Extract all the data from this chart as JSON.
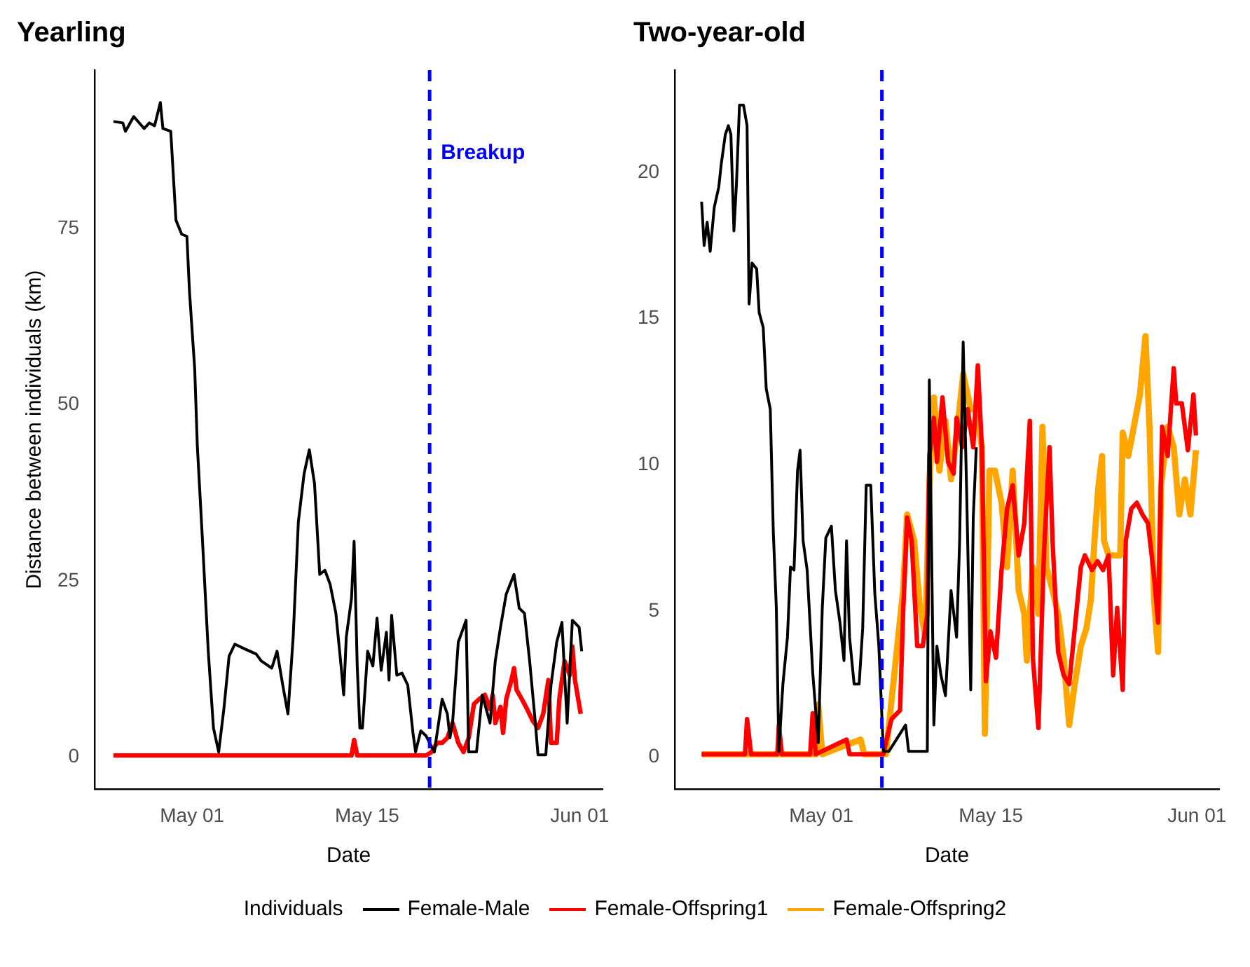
{
  "chart_data": [
    {
      "type": "line",
      "title": "Yearling",
      "xlabel": "Date",
      "ylabel": "Distance between individuals (km)",
      "xlim": [
        "--04-23T05:00",
        "--06-02T20:00"
      ],
      "ylim": [
        -4.6,
        97.5
      ],
      "xticks": [
        {
          "value": "--05-01",
          "label": "May 01"
        },
        {
          "value": "--05-15",
          "label": "May 15"
        },
        {
          "value": "--06-01",
          "label": "Jun 01"
        }
      ],
      "yticks": [
        0,
        25,
        50,
        75
      ],
      "grid": false,
      "ref_lines": [
        {
          "axis": "x",
          "value": "--05-20",
          "label": "Breakup",
          "color": "#0000ff",
          "line_style": "dashed"
        }
      ],
      "series": [
        {
          "color": "#000000",
          "x": [
            "--04-24T17:00",
            "--04-25T11:00",
            "--04-25T16:00",
            "--04-26T08:00",
            "--04-27T04:00",
            "--04-27T14:00",
            "--04-28T00:00",
            "--04-28T11:00",
            "--04-28T16:00",
            "--04-29T07:00",
            "--04-29T17:00",
            "--04-30T04:00",
            "--04-30T14:00",
            "--04-30T19:00",
            "--05-01T05:00",
            "--05-01T10:00",
            "--05-01T20:00",
            "--05-02T07:00",
            "--05-02T17:00",
            "--05-03T03:00",
            "--05-03T13:00",
            "--05-03T23:00",
            "--05-04T10:00",
            "--05-05T06:00",
            "--05-06T03:00",
            "--05-06T13:00",
            "--05-07T09:00",
            "--05-07T19:00",
            "--05-08T06:00",
            "--05-08T16:00",
            "--05-09T02:00",
            "--05-09T12:00",
            "--05-09T23:00",
            "--05-10T09:00",
            "--05-10T19:00",
            "--05-11T05:00",
            "--05-11T15:00",
            "--05-12T01:00",
            "--05-12T12:00",
            "--05-12T22:00",
            "--05-13T03:00",
            "--05-13T08:00",
            "--05-13T18:00",
            "--05-13T23:00",
            "--05-14T05:00",
            "--05-14T10:00",
            "--05-14T15:00",
            "--05-15T01:00",
            "--05-15T11:00",
            "--05-15T19:00",
            "--05-16T03:00",
            "--05-16T13:00",
            "--05-16T18:00",
            "--05-16T23:00",
            "--05-17T09:00",
            "--05-17T19:00",
            "--05-18T06:00",
            "--05-18T16:00",
            "--05-18T21:00",
            "--05-19T07:00",
            "--05-19T17:00",
            "--05-20T09:00",
            "--05-21T00:00",
            "--05-21T10:00",
            "--05-21T15:00",
            "--05-21T20:00",
            "--05-22T07:00",
            "--05-22T22:00",
            "--05-23T03:00",
            "--05-23T18:00",
            "--05-24T05:00",
            "--05-24T20:00",
            "--05-25T06:00",
            "--05-25T16:00",
            "--05-26T03:00",
            "--05-26T18:00",
            "--05-27T04:00",
            "--05-27T14:00",
            "--05-28T00:00",
            "--05-28T11:00",
            "--05-28T16:00",
            "--05-29T07:00",
            "--05-29T17:00",
            "--05-30T04:00",
            "--05-30T14:00",
            "--05-31T00:00",
            "--05-31T10:00",
            "--05-31T23:00",
            "--06-01T04:00"
          ],
          "values": [
            90.2,
            90,
            88.8,
            90.9,
            89.2,
            90,
            89.6,
            92.9,
            89.2,
            88.8,
            76.2,
            74.2,
            73.9,
            66,
            55.1,
            44.2,
            30.6,
            15,
            4.1,
            0.7,
            6.8,
            14.3,
            16,
            15.3,
            14.6,
            13.6,
            12.6,
            15,
            10.2,
            6.1,
            17,
            33.4,
            40.2,
            43.6,
            38.8,
            25.9,
            26.5,
            24.5,
            20.4,
            12.9,
            8.8,
            17,
            22.5,
            30.6,
            12.9,
            4.1,
            4.1,
            15,
            12.9,
            19.7,
            12.3,
            17.7,
            10.9,
            20.1,
            11.6,
            11.9,
            10.2,
            3.4,
            0.7,
            3.7,
            3,
            0.7,
            8.2,
            6.1,
            2.7,
            4.8,
            16.3,
            19.4,
            0.7,
            0.7,
            8.8,
            4.8,
            13.6,
            18.4,
            23.1,
            25.9,
            21.1,
            20.4,
            13.6,
            4.8,
            0.3,
            0.3,
            10.2,
            16.3,
            19.1,
            4.8,
            19.4,
            18.4,
            15
          ]
        },
        {
          "color": "#ff0000",
          "x": [
            "--04-24T17:00",
            "--05-13T18:00",
            "--05-13T23:00",
            "--05-14T05:00",
            "--05-19T17:00",
            "--05-20T04:00",
            "--05-20T14:00",
            "--05-21T00:00",
            "--05-21T10:00",
            "--05-21T20:00",
            "--05-22T07:00",
            "--05-22T17:00",
            "--05-23T03:00",
            "--05-23T13:00",
            "--05-23T23:00",
            "--05-24T10:00",
            "--05-24T20:00",
            "--05-25T01:00",
            "--05-25T06:00",
            "--05-25T16:00",
            "--05-25T21:00",
            "--05-26T03:00",
            "--05-26T13:00",
            "--05-26T18:00",
            "--05-26T23:00",
            "--05-27T09:00",
            "--05-27T19:00",
            "--05-28T06:00",
            "--05-28T16:00",
            "--05-29T02:00",
            "--05-29T12:00",
            "--05-29T17:00",
            "--05-30T04:00",
            "--05-30T09:00",
            "--05-30T19:00",
            "--05-31T05:00",
            "--05-31T10:00",
            "--05-31T15:00",
            "--06-01T02:00"
          ],
          "values": [
            0.2,
            0.2,
            2.4,
            0.2,
            0.2,
            0.7,
            2,
            2,
            2.7,
            4.8,
            2,
            0.7,
            2.7,
            7.5,
            8.2,
            8.8,
            6.8,
            8.8,
            4.8,
            7.1,
            3.4,
            8.2,
            10.9,
            12.6,
            9.5,
            8.2,
            6.8,
            5.1,
            4.1,
            6.1,
            10.9,
            2,
            2,
            8.2,
            13.6,
            11.6,
            15.7,
            10.9,
            6.1
          ]
        }
      ]
    },
    {
      "type": "line",
      "title": "Two-year-old",
      "xlabel": "Date",
      "legend_title": "Individuals",
      "legend": "bottom",
      "xlim": [
        "--04-18T22:00",
        "--06-02T20:00"
      ],
      "ylim": [
        -1.1,
        23.5
      ],
      "xticks": [
        {
          "value": "--05-01",
          "label": "May 01"
        },
        {
          "value": "--05-15",
          "label": "May 15"
        },
        {
          "value": "--06-01",
          "label": "Jun 01"
        }
      ],
      "yticks": [
        0,
        5,
        10,
        15,
        20
      ],
      "grid": false,
      "ref_lines": [
        {
          "axis": "x",
          "value": "--05-06",
          "color": "#0000ff",
          "line_style": "dashed"
        }
      ],
      "series": [
        {
          "name": "Female-Male",
          "color": "#000000",
          "x": [
            "--04-21T03:00",
            "--04-21T08:00",
            "--04-21T14:00",
            "--04-21T20:00",
            "--04-22T04:00",
            "--04-22T13:00",
            "--04-22T18:00",
            "--04-23T02:00",
            "--04-23T08:00",
            "--04-23T13:00",
            "--04-23T19:00",
            "--04-24T00:00",
            "--04-24T06:00",
            "--04-24T14:00",
            "--04-24T21:00",
            "--04-25T01:00",
            "--04-25T07:00",
            "--04-25T16:00",
            "--04-25T21:00",
            "--04-26T05:00",
            "--04-26T11:00",
            "--04-26T19:00",
            "--04-27T01:00",
            "--04-27T07:00",
            "--04-27T12:00",
            "--04-27T20:00",
            "--04-28T05:00",
            "--04-28T11:00",
            "--04-28T18:00",
            "--04-29T01:00",
            "--04-29T06:00",
            "--04-29T12:00",
            "--04-29T20:00",
            "--04-30T07:00",
            "--04-30T18:00",
            "--05-01T02:00",
            "--05-01T09:00",
            "--05-01T20:00",
            "--05-02T04:00",
            "--05-02T13:00",
            "--05-02T21:00",
            "--05-03T02:00",
            "--05-03T08:00",
            "--05-03T17:00",
            "--05-04T03:00",
            "--05-04T10:00",
            "--05-04T17:00",
            "--05-05T02:00",
            "--05-05T10:00",
            "--05-05T18:00",
            "--05-06T03:00",
            "--05-06T14:00",
            "--05-07T23:00",
            "--05-08T05:00",
            "--05-09T18:00",
            "--05-09T22:00",
            "--05-10T07:00",
            "--05-10T13:00",
            "--05-10T21:00",
            "--05-11T06:00",
            "--05-11T17:00",
            "--05-12T04:00",
            "--05-12T10:00",
            "--05-12T17:00",
            "--05-13T00:00",
            "--05-13T08:00",
            "--05-13T13:00",
            "--05-13T19:00"
          ],
          "values": [
            19,
            17.5,
            18.3,
            17.3,
            18.8,
            19.5,
            20.3,
            21.3,
            21.6,
            21.3,
            18,
            19.6,
            22.3,
            22.3,
            21.6,
            15.5,
            16.9,
            16.7,
            15.2,
            14.7,
            12.6,
            11.9,
            7.7,
            5.1,
            0.2,
            2.5,
            4.1,
            6.5,
            6.4,
            9.8,
            10.5,
            7.4,
            6.4,
            2.9,
            0.5,
            5.1,
            7.5,
            7.9,
            5.7,
            4.6,
            3.3,
            7.4,
            4.1,
            2.5,
            2.5,
            4.4,
            9.3,
            9.3,
            5.6,
            3.8,
            0.2,
            0.2,
            1.1,
            0.2,
            0.2,
            12.9,
            1.1,
            3.8,
            2.8,
            2.1,
            5.7,
            4.1,
            7.4,
            14.2,
            9,
            2.3,
            8.2,
            10.6
          ]
        },
        {
          "name": "Female-Offspring1",
          "color": "#ff0000",
          "x": [
            "--04-21T03:00",
            "--04-24T17:00",
            "--04-24T21:00",
            "--04-25T05:00",
            "--04-27T09:00",
            "--04-27T12:00",
            "--04-27T18:00",
            "--04-30T02:00",
            "--04-30T07:00",
            "--04-30T13:00",
            "--05-03T02:00",
            "--05-03T08:00",
            "--05-06T03:00",
            "--05-06T08:00",
            "--05-06T19:00",
            "--05-07T12:00",
            "--05-07T18:00",
            "--05-08T02:00",
            "--05-08T11:00",
            "--05-08T22:00",
            "--05-09T09:00",
            "--05-09T18:00",
            "--05-09T22:00",
            "--05-10T07:00",
            "--05-10T13:00",
            "--05-11T00:00",
            "--05-11T11:00",
            "--05-11T22:00",
            "--05-12T04:00",
            "--05-12T15:00",
            "--05-13T02:00",
            "--05-13T13:00",
            "--05-13T22:00",
            "--05-14T06:00",
            "--05-14T14:00",
            "--05-14T23:00",
            "--05-15T10:00",
            "--05-15T21:00",
            "--05-16T08:00",
            "--05-16T19:00",
            "--05-17T07:00",
            "--05-17T18:00",
            "--05-18T05:00",
            "--05-18T11:00",
            "--05-18T22:00",
            "--05-19T09:00",
            "--05-19T20:00",
            "--05-20T02:00",
            "--05-20T13:00",
            "--05-21T00:00",
            "--05-21T11:00",
            "--05-21T22:00",
            "--05-22T10:00",
            "--05-22T18:00",
            "--05-23T08:00",
            "--05-23T19:00",
            "--05-24T06:00",
            "--05-24T17:00",
            "--05-25T02:00",
            "--05-25T10:00",
            "--05-25T21:00",
            "--05-26T03:00",
            "--05-26T14:00",
            "--05-27T01:00",
            "--05-27T12:00",
            "--05-27T23:00",
            "--05-28T11:00",
            "--05-28T19:00",
            "--05-29T03:00",
            "--05-29T14:00",
            "--05-30T02:00",
            "--05-30T07:00",
            "--05-30T18:00",
            "--05-31T06:00",
            "--05-31T17:00",
            "--05-31T22:00"
          ],
          "values": [
            0.1,
            0.1,
            1.3,
            0.1,
            0.1,
            1.1,
            0.1,
            0.1,
            1.5,
            0.1,
            0.6,
            0.1,
            0.1,
            0.5,
            1.3,
            1.6,
            4.9,
            8.2,
            7.4,
            3.8,
            3.8,
            4.9,
            10.3,
            11.6,
            10.1,
            12.3,
            10.1,
            9.7,
            11.6,
            10.6,
            11.9,
            10.6,
            13.4,
            10.6,
            2.6,
            4.3,
            3.4,
            6.4,
            8.5,
            9.3,
            6.9,
            8,
            11.5,
            3.4,
            1,
            7,
            10.6,
            7.4,
            3.6,
            2.8,
            2.5,
            4.4,
            6.5,
            6.9,
            6.4,
            6.7,
            6.4,
            6.9,
            2.8,
            5.1,
            2.3,
            7.4,
            8.5,
            8.7,
            8.3,
            8,
            6.2,
            4.6,
            11.3,
            10.3,
            13.3,
            12.1,
            12.1,
            10.5,
            12.4,
            11
          ]
        },
        {
          "name": "Female-Offspring2",
          "color": "#ffa500",
          "x": [
            "--04-21T03:00",
            "--04-30T13:00",
            "--04-30T18:00",
            "--05-01T02:00",
            "--05-04T06:00",
            "--05-04T13:00",
            "--05-06T03:00",
            "--05-06T08:00",
            "--05-07T18:00",
            "--05-08T02:00",
            "--05-08T16:00",
            "--05-09T03:00",
            "--05-09T14:00",
            "--05-09T22:00",
            "--05-10T07:00",
            "--05-10T18:00",
            "--05-11T06:00",
            "--05-11T17:00",
            "--05-12T04:00",
            "--05-12T17:00",
            "--05-13T08:00",
            "--05-13T19:00",
            "--05-14T06:00",
            "--05-14T12:00",
            "--05-14T21:00",
            "--05-15T08:00",
            "--05-15T21:00",
            "--05-16T08:00",
            "--05-16T19:00",
            "--05-17T07:00",
            "--05-17T18:00",
            "--05-17T23:00",
            "--05-18T11:00",
            "--05-18T22:00",
            "--05-19T06:00",
            "--05-19T14:00",
            "--05-20T02:00",
            "--05-20T13:00",
            "--05-21T00:00",
            "--05-21T11:00",
            "--05-21T22:00",
            "--05-22T10:00",
            "--05-22T21:00",
            "--05-23T06:00",
            "--05-23T13:00",
            "--05-23T21:00",
            "--05-24T04:00",
            "--05-24T08:00",
            "--05-24T17:00",
            "--05-25T05:00",
            "--05-25T16:00",
            "--05-25T21:00",
            "--05-26T08:00",
            "--05-26T19:00",
            "--05-27T07:00",
            "--05-27T18:00",
            "--05-28T02:00",
            "--05-28T11:00",
            "--05-28T19:00",
            "--05-29T01:00",
            "--05-29T14:00",
            "--05-30T02:00",
            "--05-30T13:00",
            "--05-31T00:00",
            "--05-31T11:00",
            "--05-31T22:00"
          ],
          "values": [
            0.1,
            0.1,
            1.8,
            0.1,
            0.6,
            0.1,
            0.1,
            0.1,
            5.7,
            8.3,
            7.4,
            5.2,
            4.1,
            9.3,
            12.3,
            9.8,
            11.5,
            9.5,
            11,
            13.1,
            11.9,
            11.9,
            10.6,
            0.8,
            9.8,
            9.8,
            8.7,
            6.5,
            9.8,
            5.7,
            4.9,
            3.3,
            6.5,
            4.9,
            11.3,
            6.5,
            5.7,
            4.9,
            3.4,
            1.1,
            2.5,
            3.8,
            4.4,
            5.4,
            7.4,
            9.3,
            10.3,
            7.4,
            6.9,
            6.9,
            6.9,
            11.1,
            10.3,
            11.3,
            12.4,
            14.4,
            11.3,
            5.4,
            3.6,
            9.3,
            11.3,
            10.6,
            8.3,
            9.5,
            8.3,
            10.5
          ]
        }
      ]
    }
  ]
}
